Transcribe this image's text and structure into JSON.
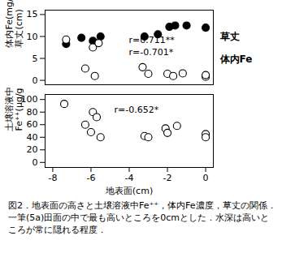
{
  "chart_data": [
    {
      "type": "scatter",
      "y_label": "体内Fe(mg/g)\n草丈(cm)",
      "xlim": [
        -8.4,
        0.4
      ],
      "ylim": [
        -1,
        16
      ],
      "yticks": [
        0,
        5,
        10,
        15
      ],
      "tick_labels": "y",
      "annotations": [
        "r=0.711**",
        "r=-0.701*"
      ],
      "series": [
        {
          "name": "草丈",
          "color": "#000000",
          "marker": "filled",
          "x": [
            -7.3,
            -6.5,
            -5.9,
            -5.5,
            -3.2,
            -2.5,
            -1.9,
            -1.6,
            -1.0,
            0
          ],
          "values": [
            8.3,
            9.7,
            9.0,
            10.0,
            10.0,
            10.5,
            12.2,
            12.5,
            12.5,
            12.0
          ]
        },
        {
          "name": "体内Fe",
          "color": "#000000",
          "marker": "open",
          "x": [
            -7.3,
            -5.9,
            -5.6,
            -6.3,
            -5.8,
            -3.3,
            -3.0,
            -2.0,
            -1.7,
            -1.2,
            0,
            0
          ],
          "values": [
            9.3,
            7.5,
            8.5,
            2.7,
            1.0,
            3.0,
            1.5,
            1.5,
            1.0,
            1.6,
            0.8,
            1.2
          ]
        }
      ]
    },
    {
      "type": "scatter",
      "x_label": "地表面(cm)",
      "y_label": "土壌溶液中\nFe⁺⁺(μg/g)",
      "xlim": [
        -8.4,
        0.4
      ],
      "xticks": [
        -8,
        -6,
        -4,
        -2,
        0
      ],
      "ylim": [
        -8,
        108
      ],
      "yticks": [
        0,
        20,
        40,
        60,
        80,
        100
      ],
      "annotations": [
        "r=-0.652*"
      ],
      "marker": "open",
      "color": "#000000",
      "x": [
        -7.4,
        -6.3,
        -5.9,
        -5.7,
        -6.0,
        -5.5,
        -3.2,
        -3.0,
        -2.1,
        -2.0,
        -1.5,
        0,
        0
      ],
      "values": [
        93,
        60,
        80,
        72,
        48,
        40,
        42,
        40,
        54,
        47,
        58,
        45,
        40
      ]
    }
  ],
  "caption": "図2．地表面の高さと土壌溶液中Fe⁺⁺，体内Fe濃度，草丈の関係．一筆(5a)田面の中で最も高いところを0cmとした．水深は高いところが常に隠れる程度．"
}
